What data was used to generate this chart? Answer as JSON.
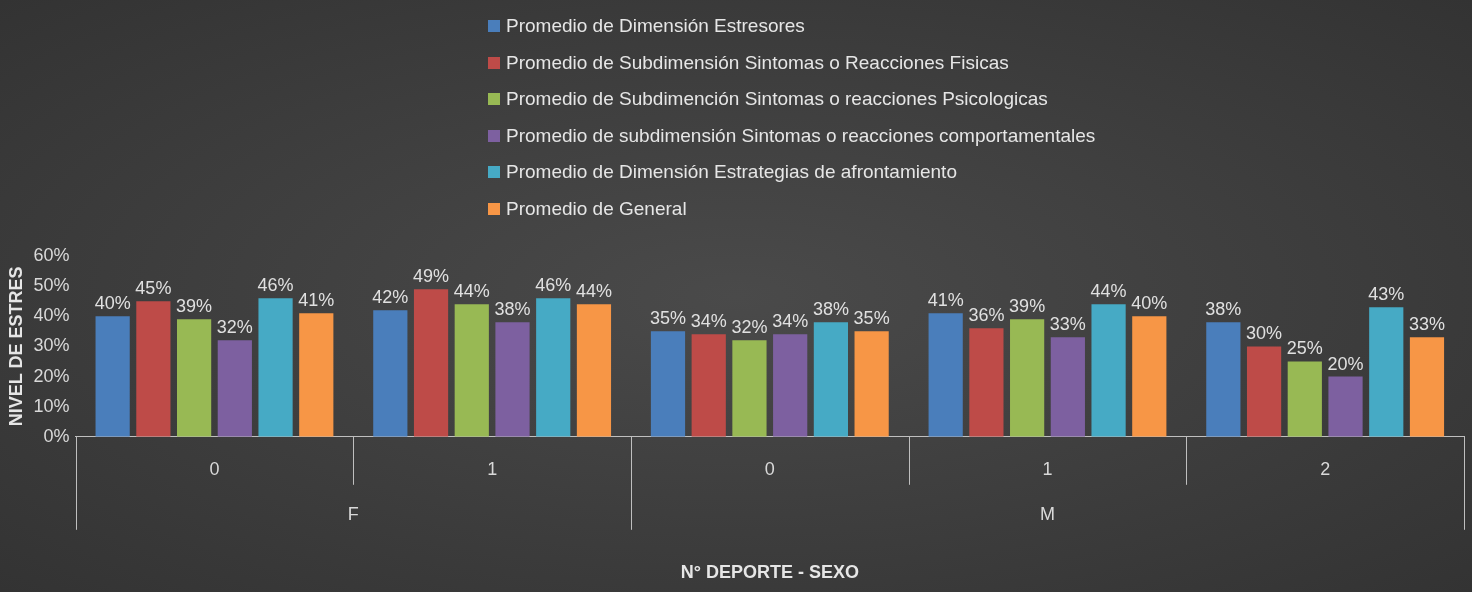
{
  "chart_data": {
    "type": "bar",
    "xlabel": "N° DEPORTE - SEXO",
    "ylabel": "NIVEL DE ESTRES",
    "categories": [
      "0",
      "1",
      "0",
      "1",
      "2"
    ],
    "annotations": [
      "F",
      "M"
    ],
    "ylim": [
      0,
      60
    ],
    "yticks": [
      {
        "value": 0,
        "label": "0%"
      },
      {
        "value": 10,
        "label": "10%"
      },
      {
        "value": 20,
        "label": "20%"
      },
      {
        "value": 30,
        "label": "30%"
      },
      {
        "value": 40,
        "label": "40%"
      },
      {
        "value": 50,
        "label": "50%"
      },
      {
        "value": 60,
        "label": "60%"
      }
    ],
    "grid": false,
    "legend": "top",
    "series": [
      {
        "name": "Promedio de Dimensión Estresores",
        "color": "#4a7ebb",
        "values": [
          40,
          42,
          35,
          41,
          38
        ],
        "value_labels": [
          "40%",
          "42%",
          "35%",
          "41%",
          "38%"
        ]
      },
      {
        "name": "Promedio de Subdimensión Sintomas o Reacciones Fisicas",
        "color": "#be4b48",
        "values": [
          45,
          49,
          34,
          36,
          30
        ],
        "value_labels": [
          "45%",
          "49%",
          "34%",
          "36%",
          "30%"
        ]
      },
      {
        "name": "Promedio de Subdimención Sintomas o reacciones Psicologicas",
        "color": "#98b954",
        "values": [
          39,
          44,
          32,
          39,
          25
        ],
        "value_labels": [
          "39%",
          "44%",
          "32%",
          "39%",
          "25%"
        ]
      },
      {
        "name": "Promedio de subdimensión Sintomas o reacciones comportamentales",
        "color": "#7d60a0",
        "values": [
          32,
          38,
          34,
          33,
          20
        ],
        "value_labels": [
          "32%",
          "38%",
          "34%",
          "33%",
          "20%"
        ]
      },
      {
        "name": "Promedio de Dimensión Estrategias de afrontamiento",
        "color": "#46aac5",
        "values": [
          46,
          46,
          38,
          44,
          43
        ],
        "value_labels": [
          "46%",
          "46%",
          "38%",
          "44%",
          "43%"
        ]
      },
      {
        "name": "Promedio de General",
        "color": "#f79646",
        "values": [
          41,
          44,
          35,
          40,
          33
        ],
        "value_labels": [
          "41%",
          "44%",
          "35%",
          "40%",
          "33%"
        ]
      }
    ]
  }
}
